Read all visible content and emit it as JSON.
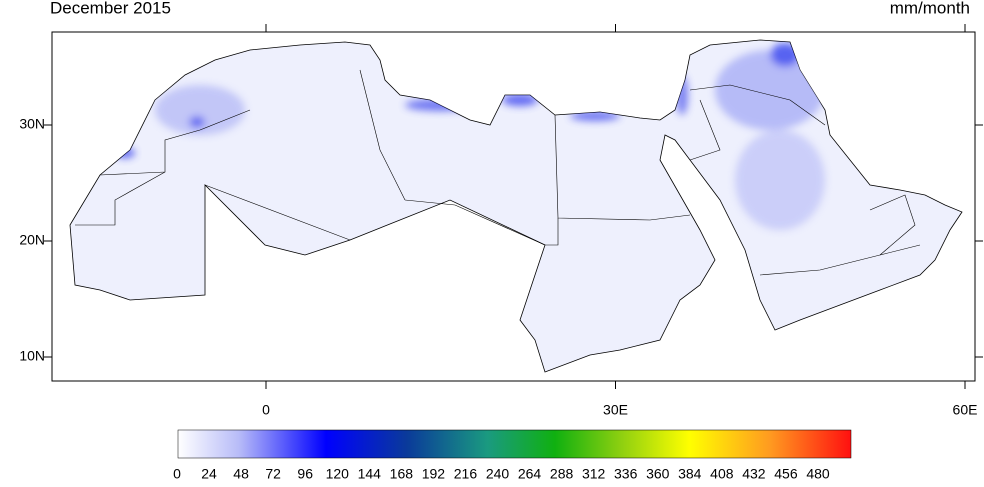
{
  "title": "December 2015",
  "units": "mm/month",
  "lat_labels": [
    {
      "value": 30,
      "label": "30N"
    },
    {
      "value": 20,
      "label": "20N"
    },
    {
      "value": 10,
      "label": "10N"
    }
  ],
  "lon_labels": [
    {
      "value": 0,
      "label": "0"
    },
    {
      "value": 30,
      "label": "30E"
    },
    {
      "value": 60,
      "label": "60E"
    }
  ],
  "colorbar": {
    "labels": [
      0,
      24,
      48,
      72,
      96,
      120,
      144,
      168,
      192,
      216,
      240,
      264,
      288,
      312,
      336,
      360,
      384,
      408,
      432,
      456,
      480
    ]
  }
}
